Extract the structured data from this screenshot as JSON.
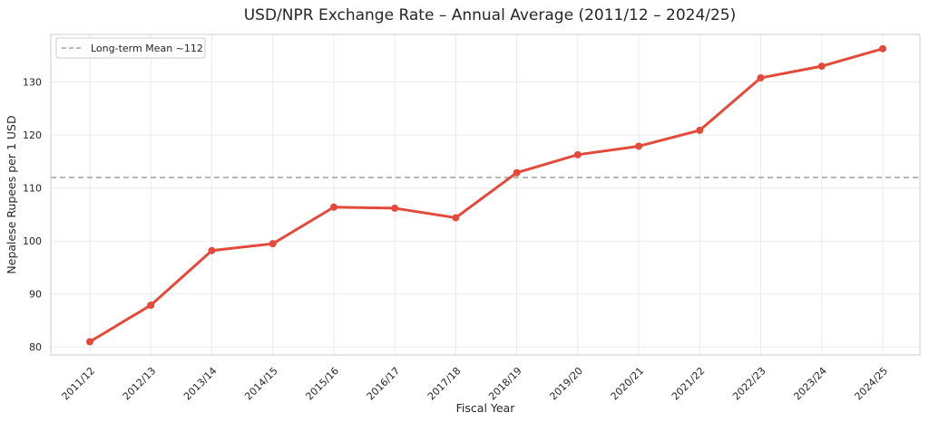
{
  "chart_data": {
    "type": "line",
    "title": "USD/NPR Exchange Rate – Annual Average (2011/12 – 2024/25)",
    "xlabel": "Fiscal Year",
    "ylabel": "Nepalese Rupees per 1 USD",
    "categories": [
      "2011/12",
      "2012/13",
      "2013/14",
      "2014/15",
      "2015/16",
      "2016/17",
      "2017/18",
      "2018/19",
      "2019/20",
      "2020/21",
      "2021/22",
      "2022/23",
      "2023/24",
      "2024/25"
    ],
    "series": [
      {
        "values": [
          81.0,
          87.9,
          98.2,
          99.5,
          106.4,
          106.2,
          104.4,
          112.9,
          116.3,
          117.9,
          120.9,
          130.8,
          133.0,
          136.3
        ],
        "color": "#e24a3b"
      }
    ],
    "reference_line": {
      "value": 112,
      "label": "Long-term Mean ~112",
      "color": "#a0a0a0",
      "style": "dashed"
    },
    "ylim": [
      78.5,
      139.0
    ],
    "yticks": [
      80,
      90,
      100,
      110,
      120,
      130
    ],
    "grid": true,
    "legend_position": "top-left"
  }
}
